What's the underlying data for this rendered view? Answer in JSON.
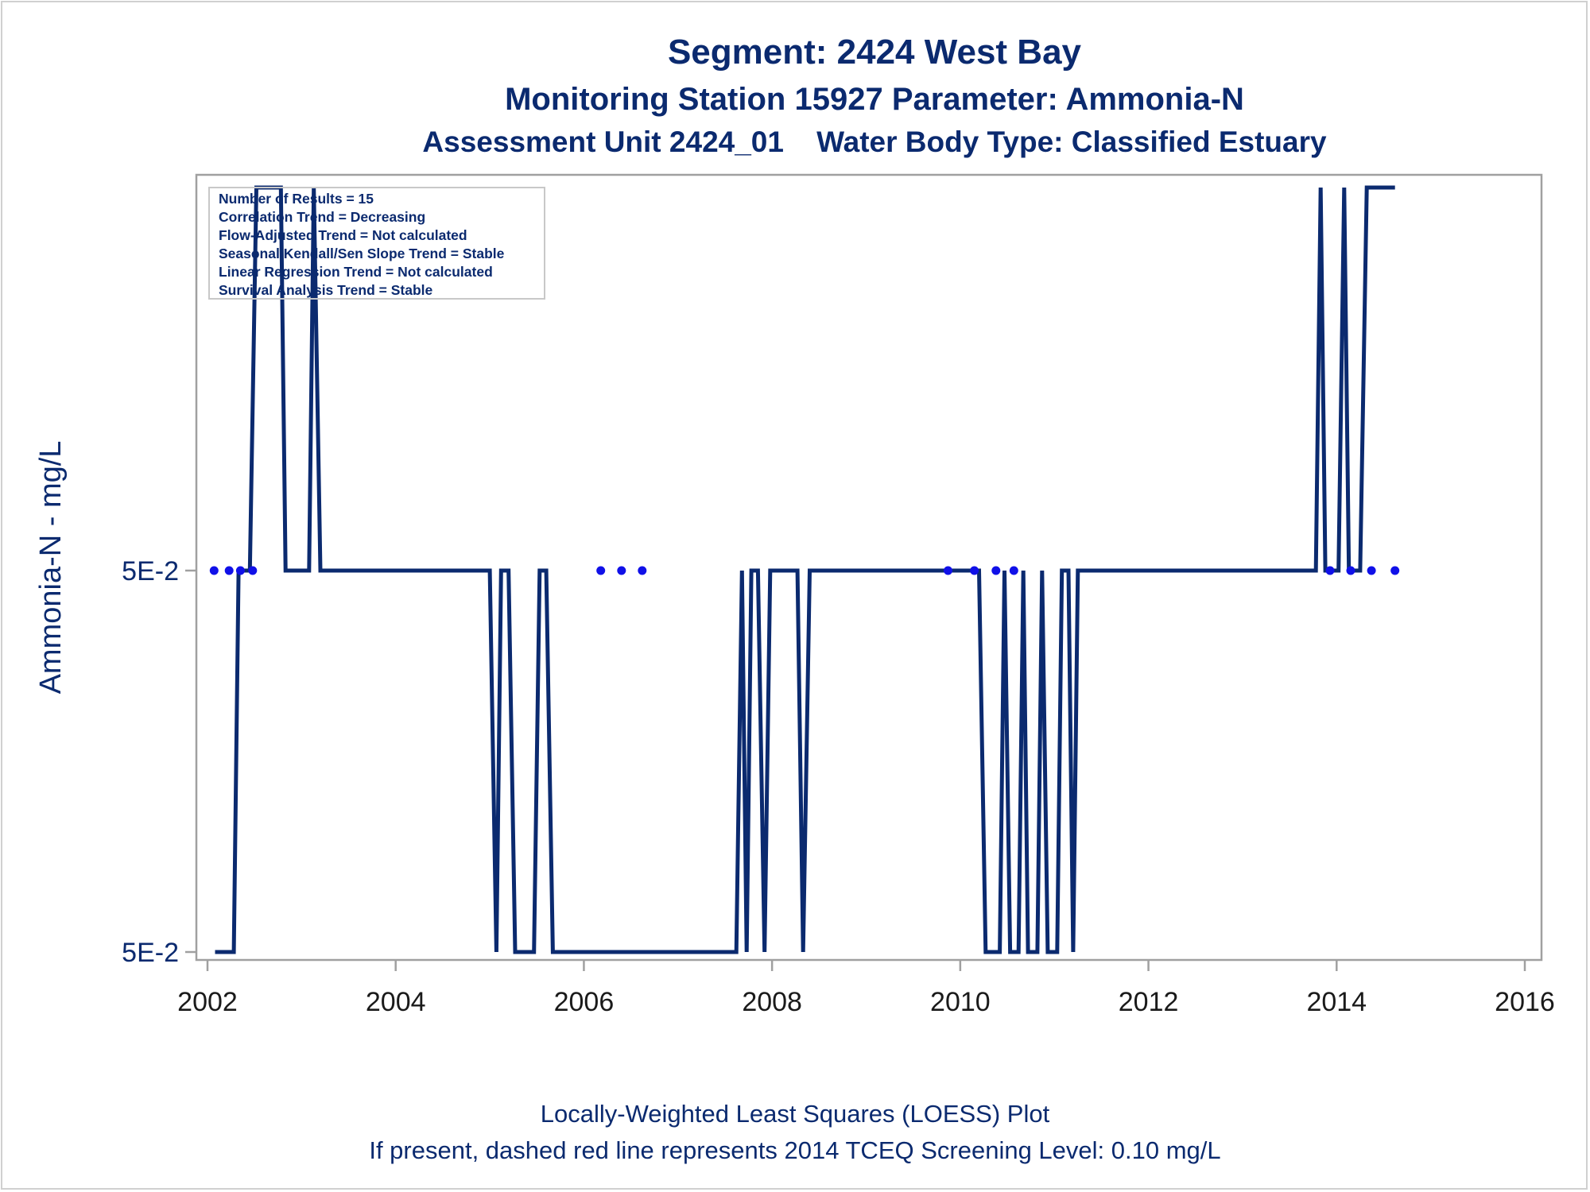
{
  "titles": {
    "line1": "Segment: 2424  West Bay",
    "line2": "Monitoring Station 15927 Parameter: Ammonia-N",
    "line3": "Assessment Unit 2424_01    Water Body Type: Classified Estuary"
  },
  "footnotes": {
    "line1": "Locally-Weighted Least Squares (LOESS) Plot",
    "line2": "If present, dashed red line represents 2014 TCEQ Screening Level: 0.10 mg/L"
  },
  "inset": {
    "lines": [
      "Number of Results = 15",
      "Correlation Trend = Decreasing",
      "Flow-Adjusted Trend = Not calculated",
      "Seasonal Kendall/Sen Slope Trend = Stable",
      "Linear Regression Trend = Not calculated",
      "Survival Analysis Trend = Stable"
    ]
  },
  "colors": {
    "line": "#0b2a6f",
    "points": "#1010e8",
    "frame": "#a0a0a0",
    "text": "#0b2a6f"
  },
  "chart_data": {
    "type": "line",
    "title": "Segment: 2424  West Bay",
    "xlabel": "",
    "ylabel": "Ammonia-N - mg/L",
    "xlim": [
      2002,
      2016
    ],
    "x_ticks": [
      "2002",
      "2004",
      "2006",
      "2008",
      "2010",
      "2012",
      "2014",
      "2016"
    ],
    "y_levels": {
      "high": 1,
      "mid": 0,
      "low": -1
    },
    "y_ticks": [
      {
        "level": 0,
        "label": "5E-2"
      },
      {
        "level": -1,
        "label": "5E-2"
      }
    ],
    "grid": false,
    "series": [
      {
        "kind": "loess-line",
        "points": [
          [
            2002.08,
            -1
          ],
          [
            2002.28,
            -1
          ],
          [
            2002.33,
            0
          ],
          [
            2002.45,
            0
          ],
          [
            2002.52,
            1
          ],
          [
            2002.78,
            1
          ],
          [
            2002.83,
            0
          ],
          [
            2003.08,
            0
          ],
          [
            2003.13,
            1
          ],
          [
            2003.2,
            0
          ],
          [
            2005.0,
            0
          ],
          [
            2005.07,
            -1
          ],
          [
            2005.12,
            0
          ],
          [
            2005.2,
            0
          ],
          [
            2005.27,
            -1
          ],
          [
            2005.47,
            -1
          ],
          [
            2005.53,
            0
          ],
          [
            2005.6,
            0
          ],
          [
            2005.67,
            -1
          ],
          [
            2007.62,
            -1
          ],
          [
            2007.68,
            0
          ],
          [
            2007.73,
            -1
          ],
          [
            2007.78,
            0
          ],
          [
            2007.85,
            0
          ],
          [
            2007.92,
            -1
          ],
          [
            2007.98,
            0
          ],
          [
            2008.27,
            0
          ],
          [
            2008.33,
            -1
          ],
          [
            2008.4,
            0
          ],
          [
            2010.2,
            0
          ],
          [
            2010.27,
            -1
          ],
          [
            2010.42,
            -1
          ],
          [
            2010.47,
            0
          ],
          [
            2010.53,
            -1
          ],
          [
            2010.62,
            -1
          ],
          [
            2010.67,
            0
          ],
          [
            2010.72,
            -1
          ],
          [
            2010.82,
            -1
          ],
          [
            2010.87,
            0
          ],
          [
            2010.93,
            -1
          ],
          [
            2011.03,
            -1
          ],
          [
            2011.08,
            0
          ],
          [
            2011.15,
            0
          ],
          [
            2011.2,
            -1
          ],
          [
            2011.25,
            0
          ],
          [
            2013.78,
            0
          ],
          [
            2013.83,
            1
          ],
          [
            2013.88,
            0
          ],
          [
            2014.02,
            0
          ],
          [
            2014.08,
            1
          ],
          [
            2014.13,
            0
          ],
          [
            2014.25,
            0
          ],
          [
            2014.32,
            1
          ],
          [
            2014.62,
            1
          ]
        ]
      },
      {
        "kind": "observations",
        "points": [
          [
            2002.07,
            0
          ],
          [
            2002.23,
            0
          ],
          [
            2002.35,
            0
          ],
          [
            2002.48,
            0
          ],
          [
            2006.18,
            0
          ],
          [
            2006.4,
            0
          ],
          [
            2006.62,
            0
          ],
          [
            2009.87,
            0
          ],
          [
            2010.15,
            0
          ],
          [
            2010.38,
            0
          ],
          [
            2010.57,
            0
          ],
          [
            2013.93,
            0
          ],
          [
            2014.15,
            0
          ],
          [
            2014.37,
            0
          ],
          [
            2014.62,
            0
          ]
        ]
      }
    ]
  }
}
